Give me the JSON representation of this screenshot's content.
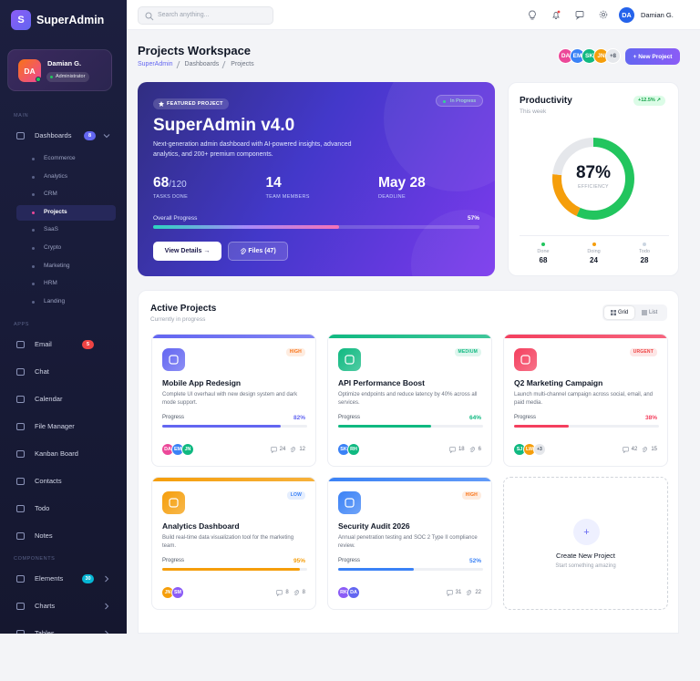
{
  "sidebar": {
    "brand_logo": "S",
    "brand": "SuperAdmin",
    "user": {
      "initials": "DA",
      "name": "Damian G.",
      "role": "Administrator"
    },
    "sections": [
      {
        "label": "MAIN",
        "items": [
          {
            "label": "Dashboards",
            "badge": 8,
            "badge_color": "#6366f1",
            "children": [
              "Ecommerce",
              "Analytics",
              "CRM",
              "Projects",
              "SaaS",
              "Crypto",
              "Marketing",
              "HRM",
              "Landing"
            ]
          }
        ]
      },
      {
        "label": "APPS",
        "items": [
          {
            "label": "Email",
            "badge": 5,
            "badge_color": "#ef4444"
          },
          {
            "label": "Chat"
          },
          {
            "label": "Calendar"
          },
          {
            "label": "File Manager"
          },
          {
            "label": "Kanban Board"
          },
          {
            "label": "Contacts"
          },
          {
            "label": "Todo"
          },
          {
            "label": "Notes"
          }
        ]
      },
      {
        "label": "COMPONENTS",
        "items": [
          {
            "label": "Elements",
            "badge": 30,
            "badge_color": "#06b6d4",
            "submenu": true
          },
          {
            "label": "Charts",
            "submenu": true
          },
          {
            "label": "Tables",
            "submenu": true
          }
        ]
      }
    ]
  },
  "topbar": {
    "search_placeholder": "Search anything...",
    "user": {
      "initials": "DA",
      "name": "Damian G."
    }
  },
  "header": {
    "title": "Projects Workspace",
    "breadcrumb": [
      "SuperAdmin",
      "Dashboards",
      "Projects"
    ],
    "team": [
      "DA",
      "EM",
      "SK",
      "JN"
    ],
    "team_more": "+8",
    "button": "+ New Project"
  },
  "featured": {
    "tag": "FEATURED PROJECT",
    "status": "In Progress",
    "title": "SuperAdmin v4.0",
    "description": "Next-generation admin dashboard with AI-powered insights, advanced analytics, and 200+ premium components.",
    "stats": [
      {
        "value": 68,
        "suffix": "/120",
        "label": "TASKS DONE"
      },
      {
        "value": 14,
        "label": "TEAM MEMBERS"
      },
      {
        "value": "May 28",
        "label": "DEADLINE"
      }
    ],
    "progress_label": "Overall Progress",
    "progress": {
      "value": 57,
      "label": "57%"
    },
    "buttons": [
      "View Details →",
      "Files (47)"
    ]
  },
  "productivity": {
    "title": "Productivity",
    "subtitle": "This week",
    "change": "+12.5% ↗",
    "efficiency": "87%",
    "efficiency_label": "EFFICIENCY",
    "breakdown": [
      {
        "name": "Done",
        "value": 68,
        "color": "#22c55e"
      },
      {
        "name": "Doing",
        "value": 24,
        "color": "#f59e0b"
      },
      {
        "name": "Todo",
        "value": 28,
        "color": "#e5e7eb"
      }
    ]
  },
  "projects": {
    "title": "Active Projects",
    "subtitle": "Currently in progress",
    "views": [
      "Grid",
      "List"
    ],
    "progress_label": "Progress",
    "items": [
      {
        "name": "Mobile App Redesign",
        "priority": "HIGH",
        "priority_color": "#f97316",
        "description": "Complete UI overhaul with new design system and dark mode support.",
        "progress": {
          "value": 82,
          "label": "82%"
        },
        "members": [
          "DA",
          "EM",
          "JN"
        ],
        "comments": 24,
        "files": 12,
        "color": "#6366f1"
      },
      {
        "name": "API Performance Boost",
        "priority": "MEDIUM",
        "priority_color": "#10b981",
        "description": "Optimize endpoints and reduce latency by 40% across all services.",
        "progress": {
          "value": 64,
          "label": "64%"
        },
        "members": [
          "SK",
          "RH"
        ],
        "comments": 18,
        "files": 6,
        "color": "#10b981"
      },
      {
        "name": "Q2 Marketing Campaign",
        "priority": "URGENT",
        "priority_color": "#ef4444",
        "description": "Launch multi-channel campaign across social, email, and paid media.",
        "progress": {
          "value": 38,
          "label": "38%"
        },
        "members": [
          "SJ",
          "LW"
        ],
        "members_more": "+3",
        "comments": 42,
        "files": 15,
        "color": "#f43f5e"
      },
      {
        "name": "Analytics Dashboard",
        "priority": "LOW",
        "priority_color": "#3b82f6",
        "description": "Build real-time data visualization tool for the marketing team.",
        "progress": {
          "value": 95,
          "label": "95%"
        },
        "members": [
          "JN",
          "SM"
        ],
        "comments": 8,
        "files": 8,
        "color": "#f59e0b"
      },
      {
        "name": "Security Audit 2026",
        "priority": "HIGH",
        "priority_color": "#f97316",
        "description": "Annual penetration testing and SOC 2 Type II compliance review.",
        "progress": {
          "value": 52,
          "label": "52%"
        },
        "members": [
          "RK",
          "DA"
        ],
        "comments": 31,
        "files": 22,
        "color": "#3b82f6"
      }
    ],
    "create": {
      "icon": "+",
      "title": "Create New Project",
      "subtitle": "Start something amazing"
    }
  }
}
